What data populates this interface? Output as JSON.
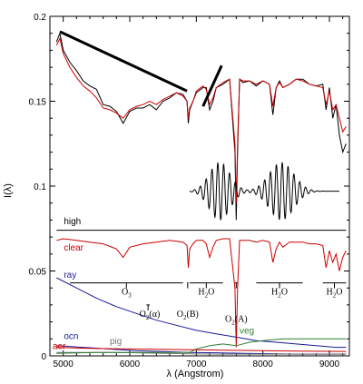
{
  "chart_data": {
    "type": "line",
    "xlabel": "λ (Angstrom)",
    "ylabel": "I(λ)",
    "xlim": [
      4800,
      9300
    ],
    "ylim": [
      0,
      0.2
    ],
    "xticks": [
      5000,
      6000,
      7000,
      8000,
      9000
    ],
    "yticks": [
      0,
      0.05,
      0.1,
      0.15,
      0.2
    ],
    "ytick_labels": [
      "0",
      "0.05",
      "0.1",
      "0.15",
      "0.2"
    ],
    "series": [
      {
        "name": "",
        "color": "#000000",
        "x": [
          4900,
          4950,
          5000,
          5100,
          5200,
          5300,
          5400,
          5500,
          5600,
          5700,
          5800,
          5900,
          6000,
          6100,
          6200,
          6300,
          6400,
          6500,
          6600,
          6700,
          6800,
          6860,
          6880,
          6900,
          6950,
          7000,
          7100,
          7150,
          7200,
          7250,
          7300,
          7400,
          7500,
          7580,
          7600,
          7620,
          7650,
          7700,
          7800,
          7900,
          8000,
          8100,
          8150,
          8200,
          8250,
          8300,
          8400,
          8500,
          8600,
          8700,
          8800,
          8900,
          8950,
          9000,
          9050,
          9100,
          9150,
          9200,
          9250
        ],
        "values": [
          0.185,
          0.19,
          0.18,
          0.173,
          0.168,
          0.162,
          0.159,
          0.157,
          0.148,
          0.147,
          0.144,
          0.137,
          0.144,
          0.146,
          0.146,
          0.148,
          0.145,
          0.15,
          0.152,
          0.155,
          0.154,
          0.15,
          0.137,
          0.145,
          0.15,
          0.155,
          0.158,
          0.158,
          0.145,
          0.15,
          0.158,
          0.16,
          0.163,
          0.12,
          0.08,
          0.12,
          0.163,
          0.161,
          0.162,
          0.159,
          0.162,
          0.16,
          0.142,
          0.158,
          0.162,
          0.158,
          0.16,
          0.163,
          0.163,
          0.16,
          0.159,
          0.16,
          0.145,
          0.158,
          0.14,
          0.148,
          0.13,
          0.12,
          0.125
        ]
      },
      {
        "name": "",
        "color": "#cc0000",
        "x": [
          4900,
          4950,
          5000,
          5100,
          5200,
          5300,
          5400,
          5500,
          5600,
          5700,
          5800,
          5900,
          6000,
          6100,
          6200,
          6300,
          6400,
          6500,
          6600,
          6700,
          6800,
          6860,
          6880,
          6900,
          6950,
          7000,
          7100,
          7150,
          7200,
          7250,
          7300,
          7400,
          7500,
          7580,
          7600,
          7620,
          7650,
          7700,
          7800,
          7900,
          8000,
          8100,
          8150,
          8200,
          8250,
          8300,
          8400,
          8500,
          8600,
          8700,
          8800,
          8900,
          8950,
          9000,
          9050,
          9100,
          9150,
          9200,
          9250
        ],
        "values": [
          0.183,
          0.187,
          0.178,
          0.17,
          0.164,
          0.159,
          0.156,
          0.152,
          0.146,
          0.145,
          0.143,
          0.14,
          0.145,
          0.147,
          0.148,
          0.15,
          0.148,
          0.151,
          0.153,
          0.155,
          0.153,
          0.15,
          0.14,
          0.146,
          0.15,
          0.156,
          0.159,
          0.157,
          0.148,
          0.152,
          0.158,
          0.161,
          0.163,
          0.125,
          0.09,
          0.125,
          0.163,
          0.162,
          0.162,
          0.16,
          0.162,
          0.16,
          0.147,
          0.158,
          0.161,
          0.158,
          0.16,
          0.163,
          0.162,
          0.16,
          0.159,
          0.158,
          0.148,
          0.156,
          0.145,
          0.148,
          0.14,
          0.132,
          0.135
        ]
      },
      {
        "name": "high",
        "color": "#000000",
        "x": [
          4900,
          9250
        ],
        "values": [
          0.074,
          0.074
        ]
      },
      {
        "name": "clear",
        "color": "#cc0000",
        "x": [
          4900,
          5000,
          5200,
          5400,
          5600,
          5800,
          5900,
          6000,
          6200,
          6400,
          6600,
          6800,
          6860,
          6880,
          6900,
          6950,
          7000,
          7100,
          7150,
          7200,
          7250,
          7300,
          7400,
          7500,
          7580,
          7600,
          7620,
          7650,
          7700,
          7800,
          7900,
          8000,
          8100,
          8150,
          8200,
          8250,
          8300,
          8400,
          8500,
          8600,
          8700,
          8800,
          8900,
          8950,
          9000,
          9050,
          9100,
          9150,
          9200,
          9250
        ],
        "values": [
          0.068,
          0.069,
          0.068,
          0.067,
          0.066,
          0.063,
          0.058,
          0.064,
          0.066,
          0.067,
          0.068,
          0.067,
          0.065,
          0.052,
          0.063,
          0.066,
          0.068,
          0.068,
          0.066,
          0.058,
          0.064,
          0.068,
          0.069,
          0.069,
          0.04,
          0.005,
          0.04,
          0.068,
          0.068,
          0.068,
          0.067,
          0.068,
          0.067,
          0.055,
          0.063,
          0.067,
          0.064,
          0.067,
          0.067,
          0.067,
          0.066,
          0.066,
          0.065,
          0.052,
          0.062,
          0.055,
          0.06,
          0.05,
          0.058,
          0.062
        ]
      },
      {
        "name": "ray",
        "color": "#1a1a99",
        "x": [
          4900,
          5200,
          5500,
          5800,
          6100,
          6400,
          6700,
          7000,
          7300,
          7600,
          7900,
          8200,
          8500,
          8800,
          9100,
          9250
        ],
        "values": [
          0.046,
          0.04,
          0.034,
          0.029,
          0.025,
          0.021,
          0.018,
          0.015,
          0.013,
          0.011,
          0.009,
          0.008,
          0.007,
          0.006,
          0.005,
          0.005
        ]
      },
      {
        "name": "ocn",
        "color": "#1a1a99",
        "x": [
          4900,
          5300,
          5700,
          6100,
          6500,
          6900,
          7300,
          7700,
          8100,
          8500,
          8900,
          9250
        ],
        "values": [
          0.006,
          0.005,
          0.004,
          0.003,
          0.0025,
          0.002,
          0.0018,
          0.0015,
          0.0013,
          0.001,
          0.001,
          0.001
        ]
      },
      {
        "name": "pig",
        "color": "#777777",
        "x": [
          4900,
          5300,
          5700,
          6100,
          6500,
          6900,
          7300,
          7700,
          8100,
          8500,
          8900,
          9250
        ],
        "values": [
          0.002,
          0.002,
          0.002,
          0.0018,
          0.0015,
          0.0012,
          0.001,
          0.001,
          0.001,
          0.001,
          0.001,
          0.001
        ]
      },
      {
        "name": "veg",
        "color": "#2e7d32",
        "x": [
          4900,
          5500,
          6000,
          6500,
          6900,
          7000,
          7200,
          7400,
          7600,
          7800,
          8000,
          8300,
          8600,
          8900,
          9250
        ],
        "values": [
          0.0015,
          0.002,
          0.002,
          0.002,
          0.002,
          0.004,
          0.006,
          0.007,
          0.006,
          0.008,
          0.009,
          0.01,
          0.01,
          0.01,
          0.01
        ]
      },
      {
        "name": "aer",
        "color": "#cc0000",
        "x": [
          4900,
          5300,
          5700,
          6100,
          6500,
          6900,
          7300,
          7700,
          8100,
          8500,
          8900,
          9250
        ],
        "values": [
          0.005,
          0.0045,
          0.0042,
          0.004,
          0.0038,
          0.0036,
          0.0034,
          0.0032,
          0.003,
          0.0028,
          0.0027,
          0.0026
        ]
      }
    ],
    "annotations": {
      "bands": [
        {
          "label": "O",
          "sub": "3",
          "x1": 5100,
          "x2": 6800,
          "y": 0.043,
          "label_x": 5950,
          "label_y": 0.036
        },
        {
          "label": "O",
          "sub": "2",
          "suffix": "(α)",
          "x1": 6250,
          "x2": 6300,
          "y": 0.03,
          "label_x": 6300,
          "label_y": 0.023
        },
        {
          "label": "O",
          "sub": "2",
          "suffix": "(B)",
          "x1": 6860,
          "x2": 6880,
          "y": 0.043,
          "label_x": 6870,
          "label_y": 0.023
        },
        {
          "label": "H",
          "sub": "2",
          "suffix": "O",
          "x1": 6900,
          "x2": 7400,
          "y": 0.043,
          "label_x": 7150,
          "label_y": 0.036
        },
        {
          "label": "O",
          "sub": "2",
          "suffix": "(A)",
          "x1": 7580,
          "x2": 7620,
          "y": 0.043,
          "label_x": 7600,
          "label_y": 0.02
        },
        {
          "label": "H",
          "sub": "2",
          "suffix": "O",
          "x1": 7900,
          "x2": 8600,
          "y": 0.043,
          "label_x": 8250,
          "label_y": 0.036
        },
        {
          "label": "H",
          "sub": "2",
          "suffix": "O",
          "x1": 8900,
          "x2": 9250,
          "y": 0.043,
          "label_x": 9075,
          "label_y": 0.036
        }
      ],
      "slope_lines": [
        {
          "x1": 4950,
          "y1": 0.191,
          "x2": 6860,
          "y2": 0.156
        },
        {
          "x1": 7100,
          "y1": 0.147,
          "x2": 7380,
          "y2": 0.171
        }
      ],
      "wave_packet": {
        "x_start": 6900,
        "x_end": 9150,
        "y_center": 0.097,
        "amplitude": 0.017,
        "packets": [
          {
            "center": 7350,
            "width": 220,
            "amp": 1.0
          },
          {
            "center": 8280,
            "width": 260,
            "amp": 1.0
          }
        ]
      }
    }
  }
}
